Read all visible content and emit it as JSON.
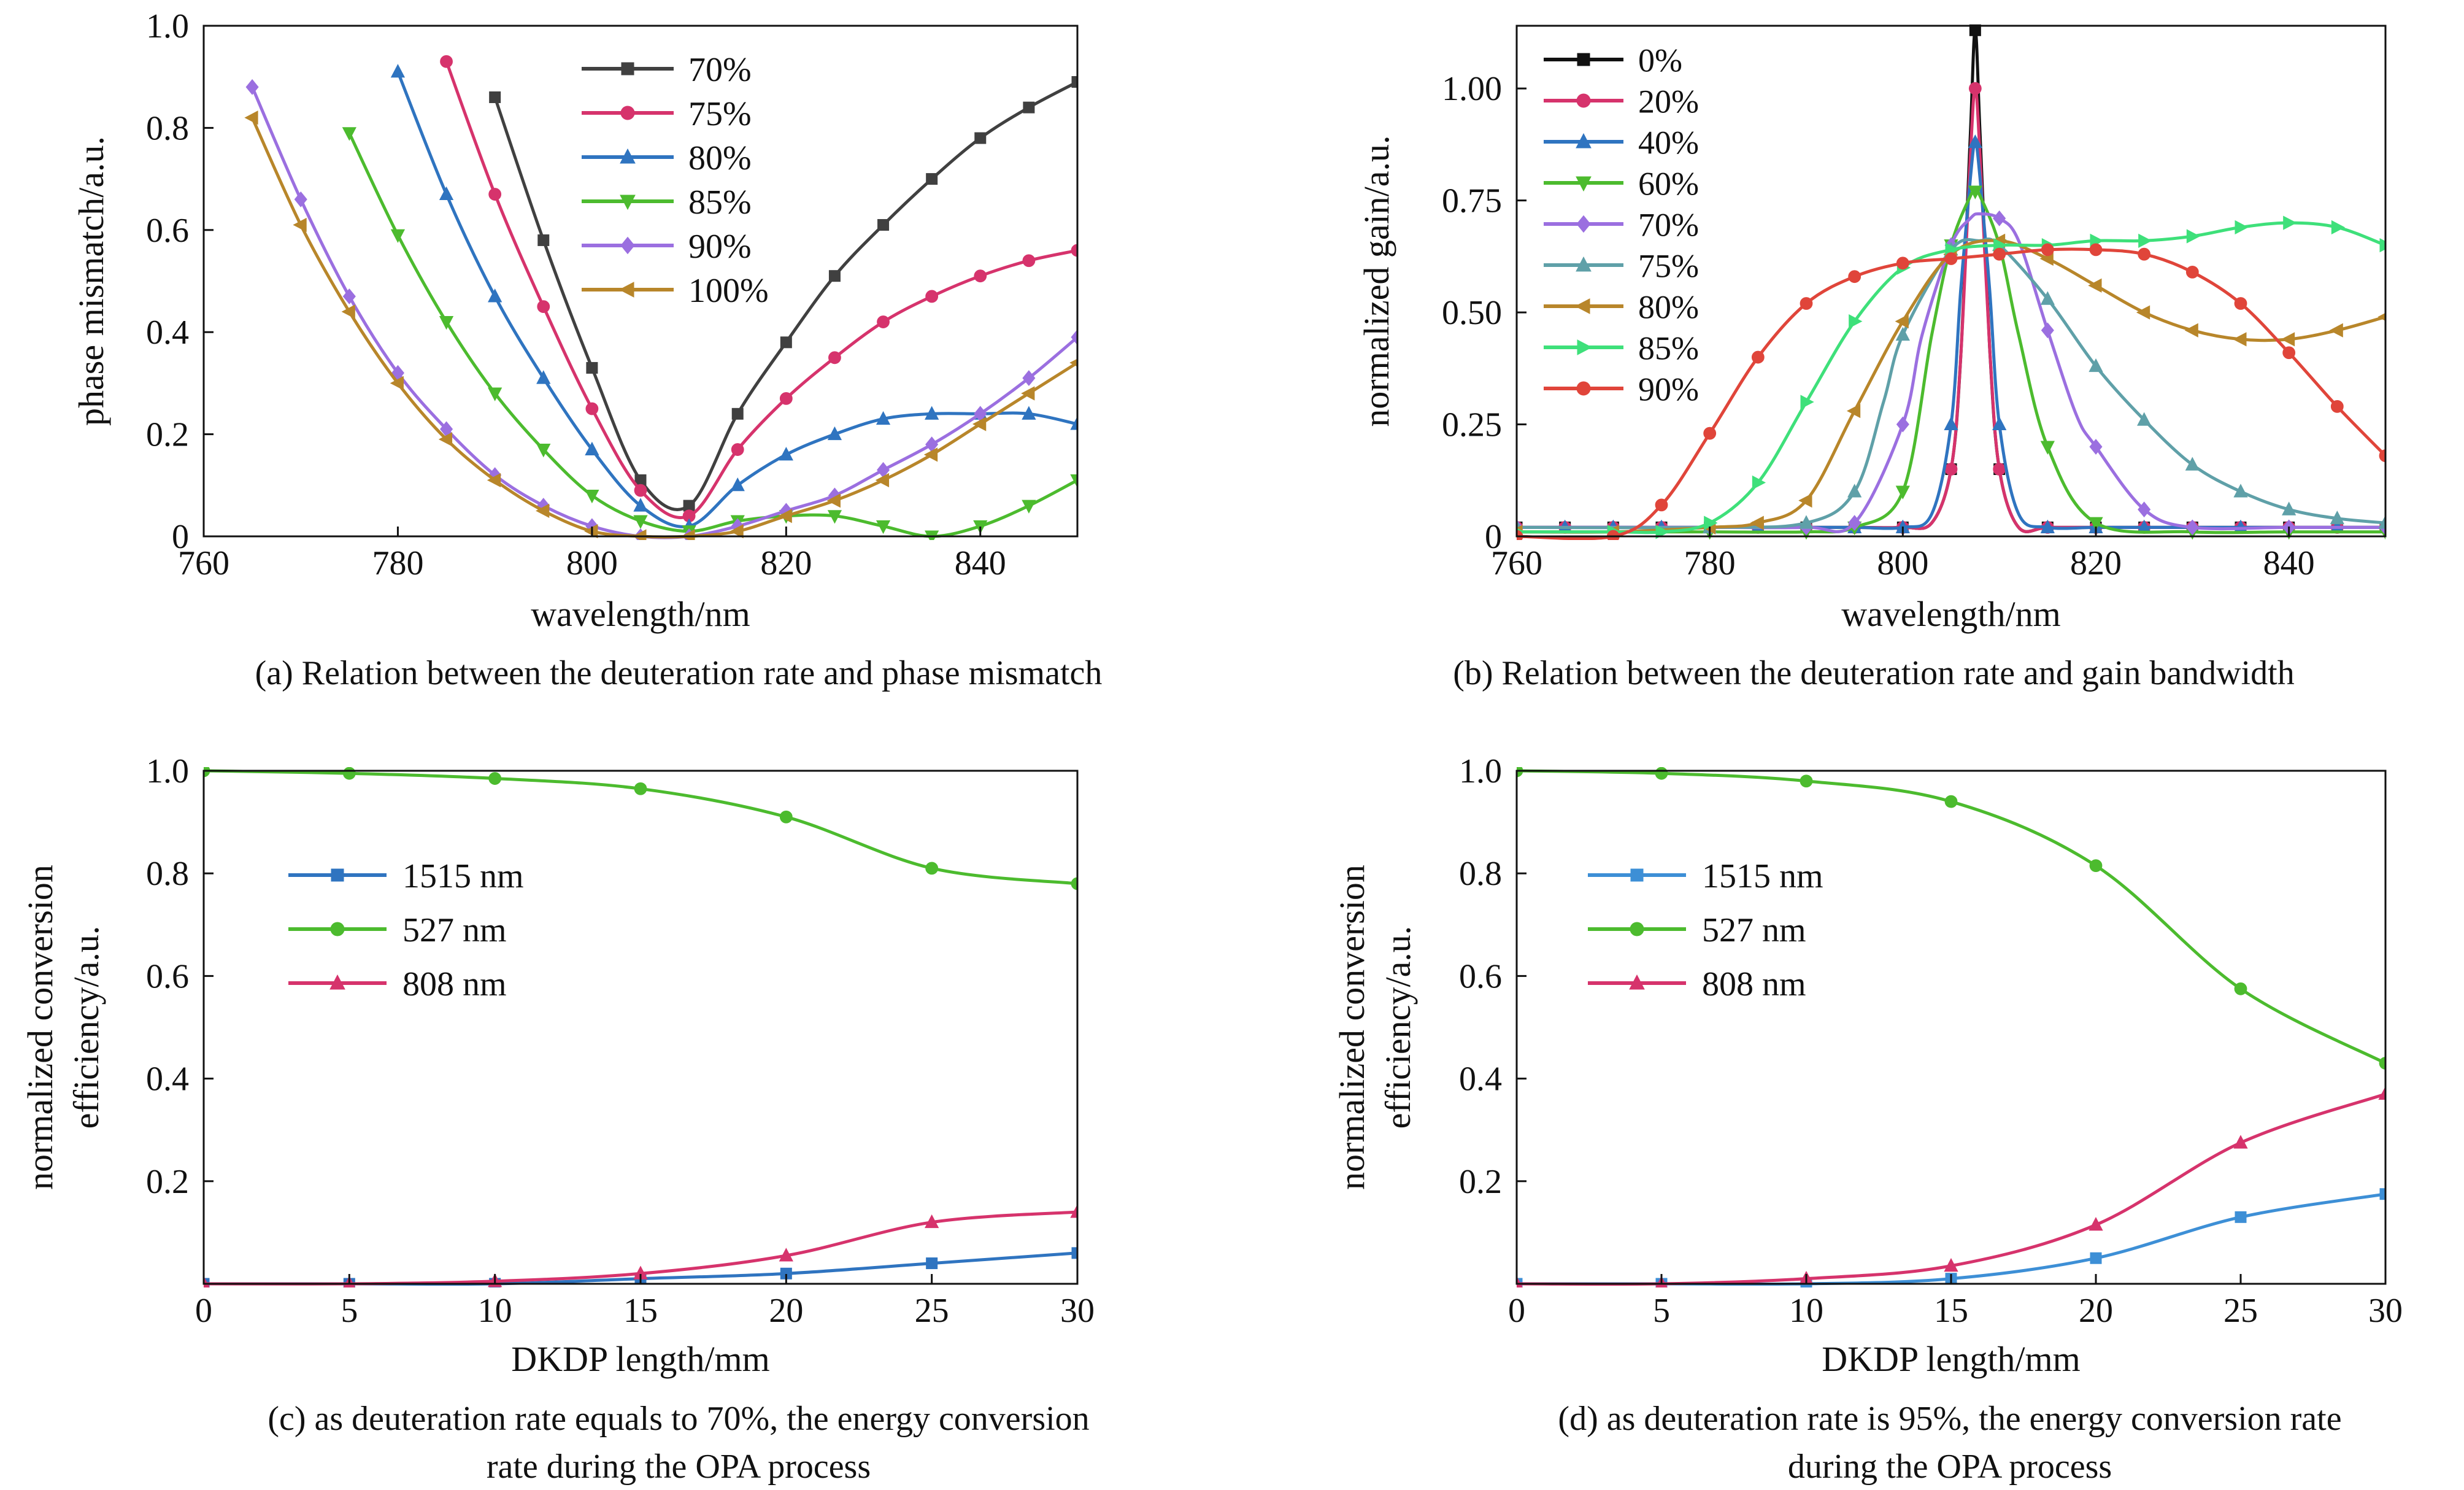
{
  "chart_data": [
    {
      "id": "a",
      "type": "line",
      "caption": "(a) Relation between the deuteration rate and phase mismatch",
      "xlabel": "wavelength/nm",
      "ylabel": "phase mismatch/a.u.",
      "xlim": [
        760,
        850
      ],
      "ylim": [
        0,
        1.0
      ],
      "xticks": [
        760,
        780,
        800,
        820,
        840
      ],
      "xtick_labels": [
        "760",
        "780",
        "800",
        "820",
        "840"
      ],
      "yticks": [
        0,
        0.2,
        0.4,
        0.6,
        0.8,
        1.0
      ],
      "ytick_labels": [
        "0",
        "0.2",
        "0.4",
        "0.6",
        "0.8",
        "1.0"
      ],
      "legend": "upper-center",
      "series": [
        {
          "name": "70%",
          "color": "#404040",
          "marker": "square",
          "x": [
            790,
            795,
            800,
            805,
            810,
            815,
            820,
            825,
            830,
            835,
            840,
            845,
            850
          ],
          "y": [
            0.86,
            0.58,
            0.33,
            0.11,
            0.06,
            0.24,
            0.38,
            0.51,
            0.61,
            0.7,
            0.78,
            0.84,
            0.89
          ]
        },
        {
          "name": "75%",
          "color": "#d6336c",
          "marker": "circle",
          "x": [
            785,
            790,
            795,
            800,
            805,
            810,
            815,
            820,
            825,
            830,
            835,
            840,
            845,
            850
          ],
          "y": [
            0.93,
            0.67,
            0.45,
            0.25,
            0.09,
            0.04,
            0.17,
            0.27,
            0.35,
            0.42,
            0.47,
            0.51,
            0.54,
            0.56
          ]
        },
        {
          "name": "80%",
          "color": "#2f74c0",
          "marker": "triangle-up",
          "x": [
            780,
            785,
            790,
            795,
            800,
            805,
            810,
            815,
            820,
            825,
            830,
            835,
            840,
            845,
            850
          ],
          "y": [
            0.91,
            0.67,
            0.47,
            0.31,
            0.17,
            0.06,
            0.02,
            0.1,
            0.16,
            0.2,
            0.23,
            0.24,
            0.24,
            0.24,
            0.22
          ]
        },
        {
          "name": "85%",
          "color": "#4cbb2e",
          "marker": "triangle-down",
          "x": [
            775,
            780,
            785,
            790,
            795,
            800,
            805,
            810,
            815,
            820,
            825,
            830,
            835,
            840,
            845,
            850
          ],
          "y": [
            0.79,
            0.59,
            0.42,
            0.28,
            0.17,
            0.08,
            0.03,
            0.01,
            0.03,
            0.04,
            0.04,
            0.02,
            0.0,
            0.02,
            0.06,
            0.11
          ]
        },
        {
          "name": "90%",
          "color": "#9b6fe0",
          "marker": "diamond",
          "x": [
            765,
            770,
            775,
            780,
            785,
            790,
            795,
            800,
            805,
            810,
            815,
            820,
            825,
            830,
            835,
            840,
            845,
            850
          ],
          "y": [
            0.88,
            0.66,
            0.47,
            0.32,
            0.21,
            0.12,
            0.06,
            0.02,
            0.0,
            0.0,
            0.02,
            0.05,
            0.08,
            0.13,
            0.18,
            0.24,
            0.31,
            0.39
          ]
        },
        {
          "name": "100%",
          "color": "#b8862a",
          "marker": "triangle-left",
          "x": [
            765,
            770,
            775,
            780,
            785,
            790,
            795,
            800,
            805,
            810,
            815,
            820,
            825,
            830,
            835,
            840,
            845,
            850
          ],
          "y": [
            0.82,
            0.61,
            0.44,
            0.3,
            0.19,
            0.11,
            0.05,
            0.01,
            0.0,
            0.0,
            0.01,
            0.04,
            0.07,
            0.11,
            0.16,
            0.22,
            0.28,
            0.34
          ]
        }
      ]
    },
    {
      "id": "b",
      "type": "line",
      "caption": "(b) Relation between the deuteration rate and gain bandwidth",
      "xlabel": "wavelength/nm",
      "ylabel": "normalized gain/a.u.",
      "xlim": [
        760,
        850
      ],
      "ylim": [
        0,
        1.14
      ],
      "xticks": [
        760,
        780,
        800,
        820,
        840
      ],
      "xtick_labels": [
        "760",
        "780",
        "800",
        "820",
        "840"
      ],
      "yticks": [
        0,
        0.25,
        0.5,
        0.75,
        1.0
      ],
      "ytick_labels": [
        "0",
        "0.25",
        "0.50",
        "0.75",
        "1.00"
      ],
      "legend": "upper-left",
      "series": [
        {
          "name": "0%",
          "color": "#111111",
          "marker": "square",
          "x": [
            760,
            765,
            770,
            775,
            780,
            785,
            790,
            795,
            800,
            803,
            805,
            806,
            807,
            807.5,
            808,
            809,
            810,
            812,
            815,
            820,
            825,
            830,
            835,
            840,
            845,
            850
          ],
          "y": [
            0.02,
            0.02,
            0.02,
            0.02,
            0.02,
            0.02,
            0.02,
            0.02,
            0.02,
            0.03,
            0.15,
            0.4,
            0.9,
            1.13,
            0.9,
            0.42,
            0.15,
            0.02,
            0.02,
            0.02,
            0.02,
            0.02,
            0.02,
            0.02,
            0.02,
            0.02
          ]
        },
        {
          "name": "20%",
          "color": "#d6336c",
          "marker": "circle",
          "x": [
            760,
            765,
            770,
            775,
            780,
            785,
            790,
            795,
            800,
            803,
            805,
            806,
            807,
            807.5,
            808,
            809,
            810,
            812,
            815,
            820,
            825,
            830,
            835,
            840,
            845,
            850
          ],
          "y": [
            0.02,
            0.02,
            0.02,
            0.02,
            0.02,
            0.02,
            0.02,
            0.02,
            0.02,
            0.03,
            0.15,
            0.4,
            0.85,
            1.0,
            0.85,
            0.42,
            0.15,
            0.02,
            0.02,
            0.02,
            0.02,
            0.02,
            0.02,
            0.02,
            0.02,
            0.02
          ]
        },
        {
          "name": "40%",
          "color": "#2f74c0",
          "marker": "triangle-up",
          "x": [
            760,
            765,
            770,
            775,
            780,
            785,
            790,
            795,
            800,
            803,
            805,
            806,
            807,
            807.5,
            808,
            809,
            810,
            812,
            815,
            820,
            825,
            830,
            835,
            840,
            845,
            850
          ],
          "y": [
            0.02,
            0.02,
            0.02,
            0.02,
            0.02,
            0.02,
            0.02,
            0.02,
            0.02,
            0.05,
            0.25,
            0.55,
            0.8,
            0.88,
            0.8,
            0.55,
            0.25,
            0.05,
            0.02,
            0.02,
            0.02,
            0.02,
            0.02,
            0.02,
            0.02,
            0.02
          ]
        },
        {
          "name": "60%",
          "color": "#4cbb2e",
          "marker": "triangle-down",
          "x": [
            760,
            770,
            780,
            790,
            795,
            800,
            803,
            805,
            807,
            807.5,
            808,
            810,
            812,
            815,
            820,
            830,
            840,
            850
          ],
          "y": [
            0.01,
            0.01,
            0.01,
            0.01,
            0.02,
            0.1,
            0.45,
            0.65,
            0.76,
            0.77,
            0.76,
            0.65,
            0.45,
            0.2,
            0.03,
            0.01,
            0.01,
            0.01
          ]
        },
        {
          "name": "70%",
          "color": "#9b6fe0",
          "marker": "diamond",
          "x": [
            760,
            780,
            790,
            795,
            800,
            802,
            805,
            807,
            808,
            810,
            812,
            815,
            818,
            820,
            825,
            830,
            840,
            850
          ],
          "y": [
            0.02,
            0.02,
            0.02,
            0.03,
            0.25,
            0.45,
            0.65,
            0.71,
            0.72,
            0.71,
            0.66,
            0.46,
            0.27,
            0.2,
            0.06,
            0.02,
            0.02,
            0.02
          ]
        },
        {
          "name": "75%",
          "color": "#5fa0a8",
          "marker": "triangle-up",
          "x": [
            760,
            780,
            790,
            795,
            798,
            800,
            805,
            808,
            810,
            815,
            820,
            825,
            830,
            835,
            840,
            845,
            850
          ],
          "y": [
            0.02,
            0.02,
            0.03,
            0.1,
            0.3,
            0.45,
            0.64,
            0.66,
            0.65,
            0.53,
            0.38,
            0.26,
            0.16,
            0.1,
            0.06,
            0.04,
            0.03
          ]
        },
        {
          "name": "80%",
          "color": "#b8862a",
          "marker": "triangle-left",
          "x": [
            760,
            770,
            780,
            785,
            790,
            795,
            800,
            805,
            810,
            815,
            820,
            825,
            830,
            835,
            840,
            845,
            850
          ],
          "y": [
            0.01,
            0.01,
            0.02,
            0.03,
            0.08,
            0.28,
            0.48,
            0.63,
            0.66,
            0.62,
            0.56,
            0.5,
            0.46,
            0.44,
            0.44,
            0.46,
            0.49
          ]
        },
        {
          "name": "85%",
          "color": "#3ee07a",
          "marker": "triangle-right",
          "x": [
            760,
            770,
            775,
            780,
            785,
            790,
            795,
            800,
            805,
            810,
            815,
            820,
            825,
            830,
            835,
            840,
            845,
            850
          ],
          "y": [
            0.01,
            0.01,
            0.01,
            0.03,
            0.12,
            0.3,
            0.48,
            0.6,
            0.64,
            0.65,
            0.65,
            0.66,
            0.66,
            0.67,
            0.69,
            0.7,
            0.69,
            0.65
          ]
        },
        {
          "name": "90%",
          "color": "#e0453a",
          "marker": "circle",
          "x": [
            760,
            770,
            775,
            780,
            785,
            790,
            795,
            800,
            805,
            810,
            815,
            820,
            825,
            830,
            835,
            840,
            845,
            850
          ],
          "y": [
            0.0,
            0.0,
            0.07,
            0.23,
            0.4,
            0.52,
            0.58,
            0.61,
            0.62,
            0.63,
            0.64,
            0.64,
            0.63,
            0.59,
            0.52,
            0.41,
            0.29,
            0.18
          ]
        }
      ]
    },
    {
      "id": "c",
      "type": "line",
      "caption": "(c) as deuteration rate equals to 70%, the energy conversion rate during the OPA process",
      "caption_lines": [
        "(c) as deuteration rate equals to 70%, the energy conversion",
        "rate during the OPA process"
      ],
      "xlabel": "DKDP length/mm",
      "ylabel": "normalized conversion efficiency/a.u.",
      "ylabel_lines": [
        "normalized conversion",
        "efficiency/a.u."
      ],
      "xlim": [
        0,
        30
      ],
      "ylim": [
        0,
        1.0
      ],
      "xticks": [
        0,
        5,
        10,
        15,
        20,
        25,
        30
      ],
      "xtick_labels": [
        "0",
        "5",
        "10",
        "15",
        "20",
        "25",
        "30"
      ],
      "yticks": [
        0.2,
        0.4,
        0.6,
        0.8,
        1.0
      ],
      "ytick_labels": [
        "0.2",
        "0.4",
        "0.6",
        "0.8",
        "1.0"
      ],
      "legend": "middle-left",
      "series": [
        {
          "name": "1515 nm",
          "color": "#2f74c0",
          "marker": "square",
          "x": [
            0,
            5,
            10,
            15,
            20,
            25,
            30
          ],
          "y": [
            0.0,
            0.0,
            0.0,
            0.01,
            0.02,
            0.04,
            0.06
          ]
        },
        {
          "name": "527 nm",
          "color": "#4cbb2e",
          "marker": "circle",
          "x": [
            0,
            5,
            10,
            15,
            20,
            25,
            30
          ],
          "y": [
            1.0,
            0.995,
            0.985,
            0.965,
            0.91,
            0.81,
            0.78
          ]
        },
        {
          "name": "808 nm",
          "color": "#d6336c",
          "marker": "triangle-up",
          "x": [
            0,
            5,
            10,
            15,
            20,
            25,
            30
          ],
          "y": [
            0.0,
            0.0,
            0.005,
            0.02,
            0.055,
            0.12,
            0.14
          ]
        }
      ]
    },
    {
      "id": "d",
      "type": "line",
      "caption": "(d) as deuteration rate is 95%, the energy conversion rate during the OPA process",
      "caption_lines": [
        "(d) as deuteration rate is 95%, the energy conversion rate",
        "during the OPA process"
      ],
      "xlabel": "DKDP length/mm",
      "ylabel": "normalized conversion efficiency/a.u.",
      "ylabel_lines": [
        "normalized conversion",
        "efficiency/a.u."
      ],
      "xlim": [
        0,
        30
      ],
      "ylim": [
        0,
        1.0
      ],
      "xticks": [
        0,
        5,
        10,
        15,
        20,
        25,
        30
      ],
      "xtick_labels": [
        "0",
        "5",
        "10",
        "15",
        "20",
        "25",
        "30"
      ],
      "yticks": [
        0.2,
        0.4,
        0.6,
        0.8,
        1.0
      ],
      "ytick_labels": [
        "0.2",
        "0.4",
        "0.6",
        "0.8",
        "1.0"
      ],
      "legend": "middle-left",
      "series": [
        {
          "name": "1515 nm",
          "color": "#3d8fd6",
          "marker": "square",
          "x": [
            0,
            5,
            10,
            15,
            20,
            25,
            30
          ],
          "y": [
            0.0,
            0.0,
            0.0,
            0.01,
            0.05,
            0.13,
            0.175
          ]
        },
        {
          "name": "527 nm",
          "color": "#4cbb2e",
          "marker": "circle",
          "x": [
            0,
            5,
            10,
            15,
            20,
            25,
            30
          ],
          "y": [
            1.0,
            0.995,
            0.98,
            0.94,
            0.815,
            0.575,
            0.43
          ]
        },
        {
          "name": "808 nm",
          "color": "#d6336c",
          "marker": "triangle-up",
          "x": [
            0,
            5,
            10,
            15,
            20,
            25,
            30
          ],
          "y": [
            0.0,
            0.0,
            0.01,
            0.035,
            0.115,
            0.275,
            0.37
          ]
        }
      ]
    }
  ]
}
